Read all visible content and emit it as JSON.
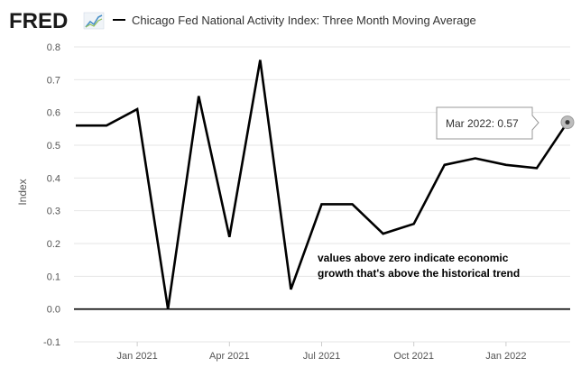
{
  "header": {
    "logo_text": "FRED",
    "series_title": "Chicago Fed National Activity Index: Three Month Moving Average"
  },
  "chart_data": {
    "type": "line",
    "title": "Chicago Fed National Activity Index: Three Month Moving Average",
    "ylabel": "Index",
    "xlabel": "",
    "ylim": [
      -0.1,
      0.8
    ],
    "yticks": [
      -0.1,
      0.0,
      0.1,
      0.2,
      0.3,
      0.4,
      0.5,
      0.6,
      0.7,
      0.8
    ],
    "ytick_labels": [
      "-0.1",
      "0.0",
      "0.1",
      "0.2",
      "0.3",
      "0.4",
      "0.5",
      "0.6",
      "0.7",
      "0.8"
    ],
    "xtick_labels": [
      "Jan 2021",
      "Apr 2021",
      "Jul 2021",
      "Oct 2021",
      "Jan 2022"
    ],
    "x": [
      "2020-11",
      "2020-12",
      "2021-01",
      "2021-02",
      "2021-03",
      "2021-04",
      "2021-05",
      "2021-06",
      "2021-07",
      "2021-08",
      "2021-09",
      "2021-10",
      "2021-11",
      "2021-12",
      "2022-01",
      "2022-02",
      "2022-03"
    ],
    "series": [
      {
        "values": [
          0.56,
          0.56,
          0.61,
          0.0,
          0.65,
          0.22,
          0.76,
          0.06,
          0.32,
          0.32,
          0.23,
          0.26,
          0.44,
          0.46,
          0.44,
          0.43,
          0.57
        ],
        "color": "#000000"
      }
    ],
    "zero_line": true,
    "grid": "horizontal",
    "annotation": {
      "line1": "values above zero indicate economic",
      "line2": "growth that's above the historical trend"
    },
    "tooltip": {
      "label": "Mar 2022:",
      "value": "0.57"
    }
  },
  "colors": {
    "line": "#000000",
    "grid": "#e6e6e6",
    "logo_accent": "#4a90c8",
    "tooltip_border": "#999999"
  }
}
